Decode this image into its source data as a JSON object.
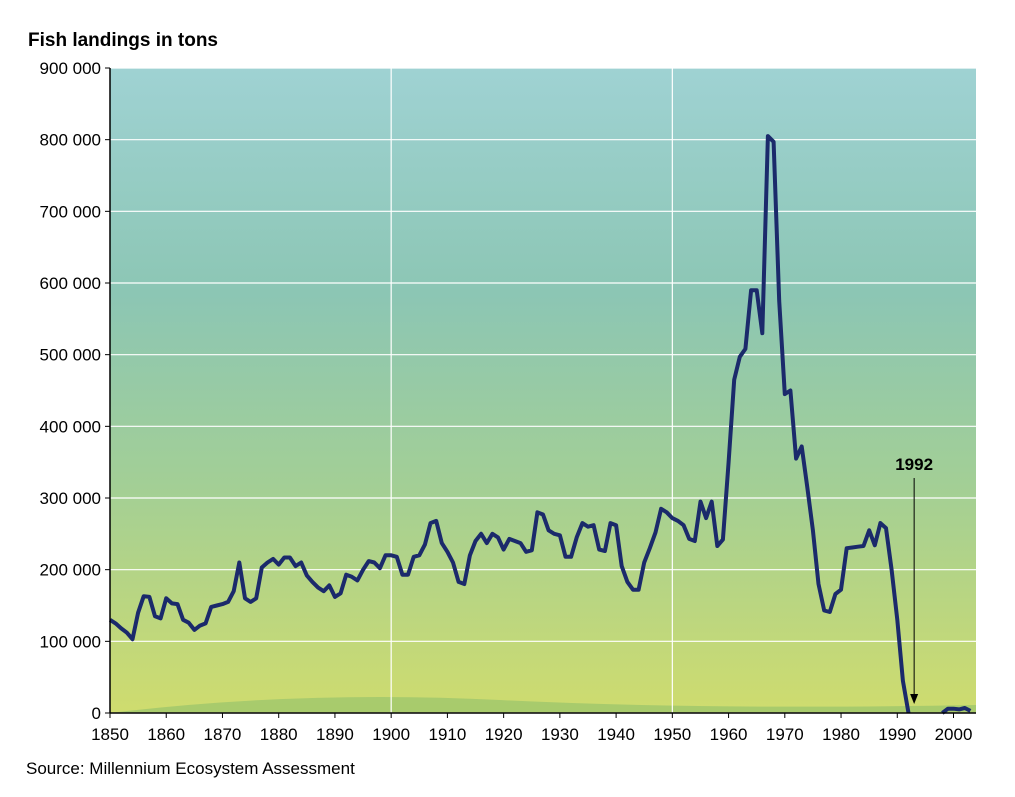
{
  "chart_data": {
    "type": "line",
    "title": "Fish landings in tons",
    "source": "Source: Millennium Ecosystem Assessment",
    "annotation": {
      "text": "1992",
      "x": 1993
    },
    "x": [
      1850,
      1851,
      1852,
      1853,
      1854,
      1855,
      1856,
      1857,
      1858,
      1859,
      1860,
      1861,
      1862,
      1863,
      1864,
      1865,
      1866,
      1867,
      1868,
      1869,
      1870,
      1871,
      1872,
      1873,
      1874,
      1875,
      1876,
      1877,
      1878,
      1879,
      1880,
      1881,
      1882,
      1883,
      1884,
      1885,
      1886,
      1887,
      1888,
      1889,
      1890,
      1891,
      1892,
      1893,
      1894,
      1895,
      1896,
      1897,
      1898,
      1899,
      1900,
      1901,
      1902,
      1903,
      1904,
      1905,
      1906,
      1907,
      1908,
      1909,
      1910,
      1911,
      1912,
      1913,
      1914,
      1915,
      1916,
      1917,
      1918,
      1919,
      1920,
      1921,
      1922,
      1923,
      1924,
      1925,
      1926,
      1927,
      1928,
      1929,
      1930,
      1931,
      1932,
      1933,
      1934,
      1935,
      1936,
      1937,
      1938,
      1939,
      1940,
      1941,
      1942,
      1943,
      1944,
      1945,
      1946,
      1947,
      1948,
      1949,
      1950,
      1951,
      1952,
      1953,
      1954,
      1955,
      1956,
      1957,
      1958,
      1959,
      1960,
      1961,
      1962,
      1963,
      1964,
      1965,
      1966,
      1967,
      1968,
      1969,
      1970,
      1971,
      1972,
      1973,
      1974,
      1975,
      1976,
      1977,
      1978,
      1979,
      1980,
      1981,
      1982,
      1983,
      1984,
      1985,
      1986,
      1987,
      1988,
      1989,
      1990,
      1991,
      1992,
      1993,
      1994,
      1995,
      1996,
      1997,
      1998,
      1999,
      2000,
      2001,
      2002,
      2003
    ],
    "series": [
      {
        "name": "Fish landings",
        "color": "#1b2a6b",
        "values": [
          130000,
          125000,
          118000,
          112000,
          103000,
          140000,
          163000,
          162000,
          135000,
          132000,
          160000,
          153000,
          152000,
          130000,
          126000,
          116000,
          122000,
          125000,
          148000,
          150000,
          152000,
          155000,
          170000,
          210000,
          160000,
          155000,
          160000,
          203000,
          210000,
          215000,
          207000,
          217000,
          217000,
          205000,
          210000,
          192000,
          183000,
          175000,
          170000,
          178000,
          162000,
          167000,
          193000,
          190000,
          185000,
          200000,
          212000,
          210000,
          202000,
          220000,
          220000,
          218000,
          193000,
          193000,
          218000,
          220000,
          235000,
          265000,
          268000,
          237000,
          225000,
          210000,
          183000,
          180000,
          220000,
          240000,
          250000,
          237000,
          250000,
          245000,
          228000,
          243000,
          240000,
          237000,
          225000,
          227000,
          280000,
          277000,
          255000,
          250000,
          248000,
          218000,
          218000,
          245000,
          265000,
          260000,
          262000,
          228000,
          226000,
          265000,
          262000,
          205000,
          183000,
          172000,
          172000,
          210000,
          230000,
          252000,
          285000,
          280000,
          272000,
          268000,
          262000,
          243000,
          240000,
          295000,
          272000,
          295000,
          233000,
          242000,
          350000,
          465000,
          497000,
          508000,
          590000,
          590000,
          530000,
          805000,
          797000,
          575000,
          445000,
          450000,
          355000,
          372000,
          315000,
          255000,
          180000,
          143000,
          141000,
          166000,
          172000,
          230000,
          231000,
          232000,
          233000,
          255000,
          234000,
          265000,
          258000,
          200000,
          130000,
          45000,
          0,
          null,
          null,
          null,
          null,
          null,
          0,
          6000,
          6000,
          5000,
          7000,
          3000
        ]
      }
    ],
    "xlim": [
      1850,
      2004
    ],
    "xticks": [
      1850,
      1860,
      1870,
      1880,
      1890,
      1900,
      1910,
      1920,
      1930,
      1940,
      1950,
      1960,
      1970,
      1980,
      1990,
      2000
    ],
    "xgrid": [
      1900,
      1950
    ],
    "ylim": [
      0,
      900000
    ],
    "yticks": [
      0,
      {
        "value": 100000,
        "label": "100 000"
      },
      {
        "value": 200000,
        "label": "200 000"
      },
      {
        "value": 300000,
        "label": "300 000"
      },
      {
        "value": 400000,
        "label": "400 000"
      },
      {
        "value": 500000,
        "label": "500 000"
      },
      {
        "value": 600000,
        "label": "600 000"
      },
      {
        "value": 700000,
        "label": "700 000"
      },
      {
        "value": 800000,
        "label": "800 000"
      },
      {
        "value": 900000,
        "label": "900 000"
      }
    ],
    "grid": true
  }
}
